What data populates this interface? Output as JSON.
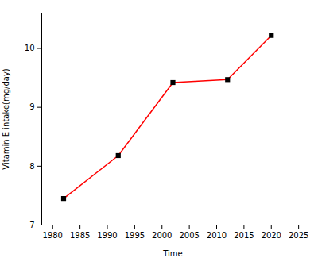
{
  "chart_data": {
    "type": "line",
    "x": [
      1982,
      1992,
      2002,
      2012,
      2020
    ],
    "values": [
      7.45,
      8.18,
      9.42,
      9.47,
      10.22
    ],
    "xlabel": "Time",
    "ylabel": "Vitamin E intake(mg/day)",
    "xlim": [
      1978,
      2026
    ],
    "ylim": [
      7.0,
      10.6
    ],
    "xticks": [
      1980,
      1985,
      1990,
      1995,
      2000,
      2005,
      2010,
      2015,
      2020,
      2025
    ],
    "yticks": [
      7,
      8,
      9,
      10
    ],
    "color": "#ff0000",
    "marker": "square",
    "grid": false
  }
}
